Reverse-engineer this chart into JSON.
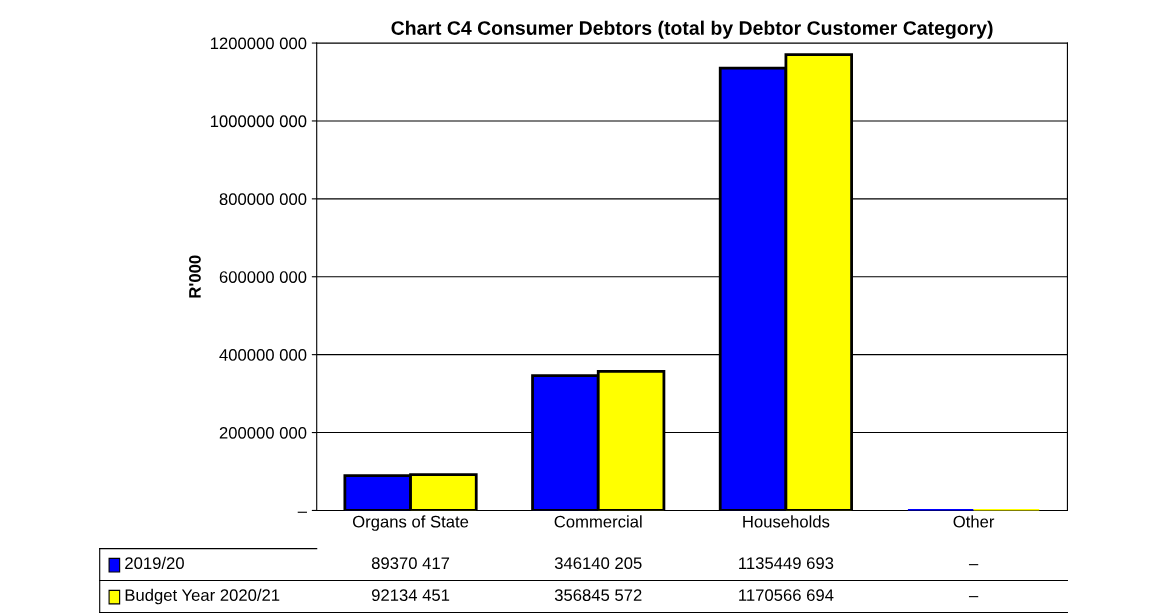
{
  "chart_data": {
    "type": "bar",
    "title": "Chart C4 Consumer Debtors (total by Debtor Customer Category)",
    "ylabel": "R'000",
    "categories": [
      "Organs of State",
      "Commercial",
      "Households",
      "Other"
    ],
    "series": [
      {
        "name": "2019/20",
        "color": "#0000ff",
        "values": [
          89370417,
          346140205,
          1135449693,
          0
        ],
        "value_labels": [
          "89370 417",
          "346140 205",
          "1135449 693",
          "–"
        ]
      },
      {
        "name": "Budget Year 2020/21",
        "color": "#ffff00",
        "values": [
          92134451,
          356845572,
          1170566694,
          0
        ],
        "value_labels": [
          "92134 451",
          "356845 572",
          "1170566 694",
          "–"
        ]
      }
    ],
    "ylim": [
      0,
      1200000000
    ],
    "yticks": [
      {
        "value": 0,
        "label": "–"
      },
      {
        "value": 200000000,
        "label": "200000 000"
      },
      {
        "value": 400000000,
        "label": "400000 000"
      },
      {
        "value": 600000000,
        "label": "600000 000"
      },
      {
        "value": 800000000,
        "label": "800000 000"
      },
      {
        "value": 1000000000,
        "label": "1000000 000"
      },
      {
        "value": 1200000000,
        "label": "1200000 000"
      }
    ],
    "grid": "y",
    "legend": "bottom"
  }
}
